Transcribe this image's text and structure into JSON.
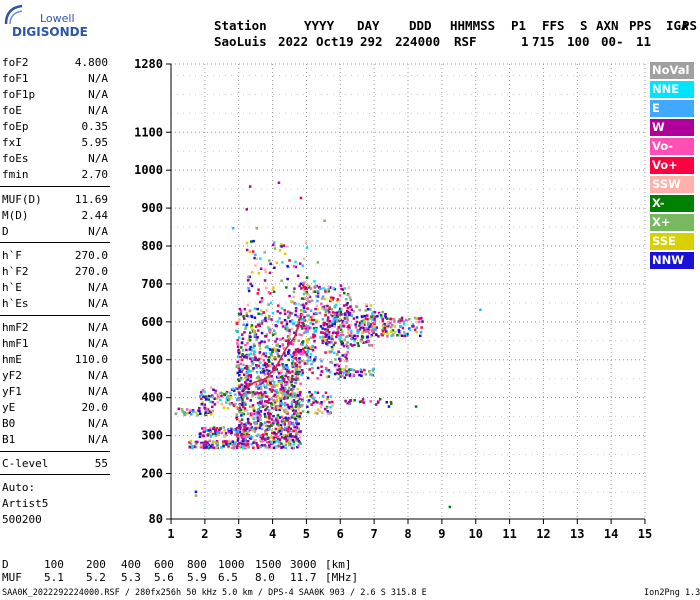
{
  "logo": {
    "line1": "Lowell",
    "line2": "DIGISONDE"
  },
  "header": {
    "line1": [
      "Station",
      "YYYY",
      "DAY",
      "DDD",
      "HHMMSS",
      "P1",
      "FFS",
      "S",
      "AXN",
      "PPS",
      "IGA",
      "PS"
    ],
    "line2": [
      "SaoLuis",
      "2022",
      "Oct19",
      "292",
      "224000",
      "RSF",
      "1",
      "715",
      "100",
      "00-",
      "11"
    ]
  },
  "params": {
    "group1": [
      {
        "label": "foF2",
        "value": "4.800"
      },
      {
        "label": "foF1",
        "value": "N/A"
      },
      {
        "label": "foF1p",
        "value": "N/A"
      },
      {
        "label": "foE",
        "value": "N/A"
      },
      {
        "label": "foEp",
        "value": "0.35"
      },
      {
        "label": "fxI",
        "value": "5.95"
      },
      {
        "label": "foEs",
        "value": "N/A"
      },
      {
        "label": "fmin",
        "value": "2.70"
      }
    ],
    "group2": [
      {
        "label": "MUF(D)",
        "value": "11.69"
      },
      {
        "label": "M(D)",
        "value": "2.44"
      },
      {
        "label": "D",
        "value": "N/A"
      }
    ],
    "group3": [
      {
        "label": "h`F",
        "value": "270.0"
      },
      {
        "label": "h`F2",
        "value": "270.0"
      },
      {
        "label": "h`E",
        "value": "N/A"
      },
      {
        "label": "h`Es",
        "value": "N/A"
      }
    ],
    "group4": [
      {
        "label": "hmF2",
        "value": "N/A"
      },
      {
        "label": "hmF1",
        "value": "N/A"
      },
      {
        "label": "hmE",
        "value": "110.0"
      },
      {
        "label": "yF2",
        "value": "N/A"
      },
      {
        "label": "yF1",
        "value": "N/A"
      },
      {
        "label": "yE",
        "value": "20.0"
      },
      {
        "label": "B0",
        "value": "N/A"
      },
      {
        "label": "B1",
        "value": "N/A"
      }
    ],
    "group5": [
      {
        "label": "C-level",
        "value": "55"
      }
    ],
    "auto_lines": [
      "Auto:",
      "Artist5",
      "500200"
    ]
  },
  "legend": [
    {
      "label": "NoVal",
      "color": "#a0a0a0"
    },
    {
      "label": "NNE",
      "color": "#00e5ff"
    },
    {
      "label": "E",
      "color": "#3fa8ff"
    },
    {
      "label": "W",
      "color": "#b0009c"
    },
    {
      "label": "Vo-",
      "color": "#ff4fb4"
    },
    {
      "label": "Vo+",
      "color": "#ff0040"
    },
    {
      "label": "SSW",
      "color": "#ffb0a8"
    },
    {
      "label": "X-",
      "color": "#008000"
    },
    {
      "label": "X+",
      "color": "#78b860"
    },
    {
      "label": "SSE",
      "color": "#d8d000"
    },
    {
      "label": "NNW",
      "color": "#1a10d8"
    }
  ],
  "bottom": {
    "d_row": [
      "D",
      "100",
      "200",
      "400",
      "600",
      "800",
      "1000",
      "1500",
      "3000",
      "[km]"
    ],
    "muf_row": [
      "MUF",
      "5.1",
      "5.2",
      "5.3",
      "5.6",
      "5.9",
      "6.5",
      "8.0",
      "11.7",
      "[MHz]"
    ]
  },
  "footer": {
    "left": "SAA0K_2022292224000.RSF / 280fx256h 50 kHz 5.0 km / DPS-4 SAA0K 903 / 2.6 S 315.8 E",
    "right": "Ion2Png 1.3.17"
  },
  "chart_data": {
    "type": "scatter",
    "xlim": [
      1,
      15
    ],
    "ylim": [
      80,
      1280
    ],
    "x_ticks": [
      "1",
      "2",
      "3",
      "4",
      "5",
      "6",
      "7",
      "8",
      "9",
      "10",
      "11",
      "12",
      "13",
      "14",
      "15"
    ],
    "y_ticks": [
      {
        "value": 80,
        "label": "80"
      },
      {
        "value": 200,
        "label": "200"
      },
      {
        "value": 300,
        "label": "300"
      },
      {
        "value": 400,
        "label": "400"
      },
      {
        "value": 500,
        "label": "500"
      },
      {
        "value": 600,
        "label": "600"
      },
      {
        "value": 700,
        "label": "700"
      },
      {
        "value": 800,
        "label": "800"
      },
      {
        "value": 900,
        "label": "900"
      },
      {
        "value": 1000,
        "label": "1000"
      },
      {
        "value": 1100,
        "label": "1100"
      },
      {
        "value": 1280,
        "label": "1280"
      }
    ],
    "grid": true,
    "clusters": [
      {
        "x": [
          1.1,
          2.2
        ],
        "y": [
          355,
          375
        ],
        "n": 40
      },
      {
        "x": [
          1.5,
          3.2
        ],
        "y": [
          270,
          290
        ],
        "n": 120
      },
      {
        "x": [
          1.8,
          3.3
        ],
        "y": [
          300,
          325
        ],
        "n": 90
      },
      {
        "x": [
          1.8,
          3.2
        ],
        "y": [
          375,
          430
        ],
        "n": 80
      },
      {
        "x": [
          2.9,
          4.8
        ],
        "y": [
          270,
          340
        ],
        "n": 320
      },
      {
        "x": [
          2.9,
          4.8
        ],
        "y": [
          340,
          420
        ],
        "n": 300
      },
      {
        "x": [
          2.9,
          4.8
        ],
        "y": [
          420,
          520
        ],
        "n": 320
      },
      {
        "x": [
          2.9,
          5.1
        ],
        "y": [
          520,
          640
        ],
        "n": 250
      },
      {
        "x": [
          3.2,
          5.0
        ],
        "y": [
          640,
          820
        ],
        "n": 90
      },
      {
        "x": [
          4.5,
          5.8
        ],
        "y": [
          360,
          420
        ],
        "n": 70
      },
      {
        "x": [
          4.6,
          6.2
        ],
        "y": [
          450,
          560
        ],
        "n": 140
      },
      {
        "x": [
          4.8,
          6.3
        ],
        "y": [
          560,
          700
        ],
        "n": 200
      },
      {
        "x": [
          5.4,
          7.0
        ],
        "y": [
          540,
          650
        ],
        "n": 180
      },
      {
        "x": [
          5.8,
          7.0
        ],
        "y": [
          460,
          480
        ],
        "n": 40
      },
      {
        "x": [
          6.6,
          7.5
        ],
        "y": [
          560,
          630
        ],
        "n": 70
      },
      {
        "x": [
          7.2,
          8.4
        ],
        "y": [
          565,
          615
        ],
        "n": 70
      },
      {
        "x": [
          6.0,
          7.5
        ],
        "y": [
          385,
          400
        ],
        "n": 20
      }
    ],
    "outliers": [
      [
        4.15,
        970
      ],
      [
        3.3,
        960
      ],
      [
        3.2,
        900
      ],
      [
        4.8,
        930
      ],
      [
        5.5,
        870
      ],
      [
        5.2,
        710
      ],
      [
        10.1,
        635
      ],
      [
        8.2,
        380
      ],
      [
        9.2,
        115
      ],
      [
        1.7,
        155
      ],
      [
        1.7,
        145
      ],
      [
        2.2,
        405
      ],
      [
        3.5,
        850
      ],
      [
        2.8,
        850
      ],
      [
        5.3,
        760
      ],
      [
        4.6,
        750
      ],
      [
        6.0,
        690
      ],
      [
        7.4,
        380
      ]
    ],
    "trace": [
      [
        3.15,
        420
      ],
      [
        3.45,
        440
      ],
      [
        3.8,
        450
      ],
      [
        4.1,
        480
      ],
      [
        4.4,
        530
      ],
      [
        4.65,
        560
      ],
      [
        4.8,
        600
      ]
    ]
  }
}
